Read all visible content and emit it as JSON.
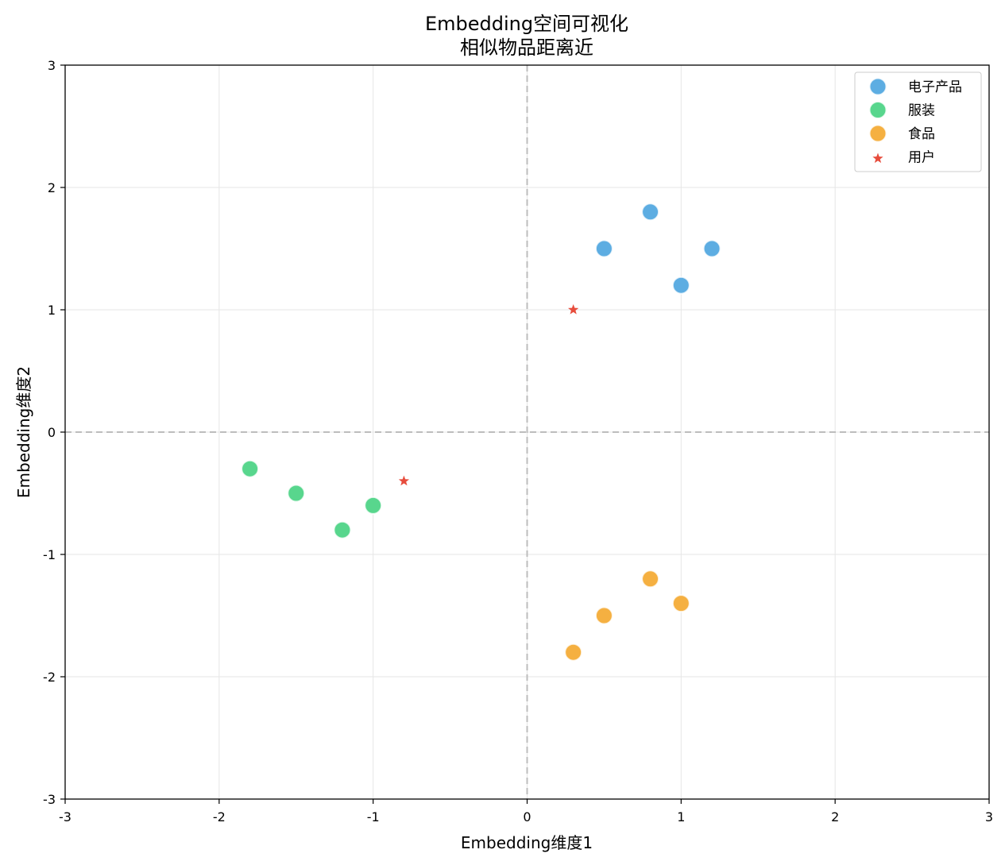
{
  "chart_data": {
    "type": "scatter",
    "title": "Embedding空间可视化",
    "subtitle": "相似物品距离近",
    "xlabel": "Embedding维度1",
    "ylabel": "Embedding维度2",
    "xlim": [
      -3,
      3
    ],
    "ylim": [
      -3,
      3
    ],
    "xticks": [
      "-3",
      "-2",
      "-1",
      "0",
      "1",
      "2",
      "3"
    ],
    "yticks": [
      "-3",
      "-2",
      "-1",
      "0",
      "1",
      "2",
      "3"
    ],
    "grid": true,
    "reference_lines": {
      "x": 0,
      "y": 0,
      "style": "dashed"
    },
    "legend_position": "top-right",
    "series": [
      {
        "name": "电子产品",
        "marker": "circle",
        "color": "#5DADE2",
        "points": [
          [
            0.5,
            1.5
          ],
          [
            0.8,
            1.8
          ],
          [
            1.2,
            1.5
          ],
          [
            1.0,
            1.2
          ]
        ]
      },
      {
        "name": "服装",
        "marker": "circle",
        "color": "#58D68D",
        "points": [
          [
            -1.8,
            -0.3
          ],
          [
            -1.5,
            -0.5
          ],
          [
            -1.2,
            -0.8
          ],
          [
            -1.0,
            -0.6
          ]
        ]
      },
      {
        "name": "食品",
        "marker": "circle",
        "color": "#F5B041",
        "points": [
          [
            0.8,
            -1.2
          ],
          [
            1.0,
            -1.4
          ],
          [
            0.5,
            -1.5
          ],
          [
            0.3,
            -1.8
          ]
        ]
      },
      {
        "name": "用户",
        "marker": "star",
        "color": "#E74C3C",
        "points": [
          [
            0.3,
            1.0
          ],
          [
            -0.8,
            -0.4
          ]
        ]
      }
    ]
  }
}
